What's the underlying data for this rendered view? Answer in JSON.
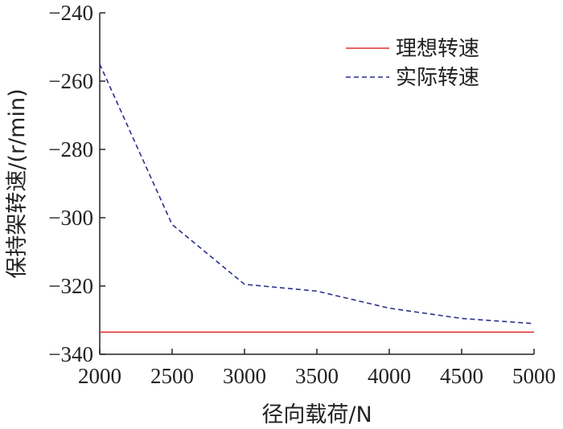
{
  "chart_data": {
    "type": "line",
    "xlabel": "径向载荷/N",
    "ylabel": "保持架转速/(r/min)",
    "xlim": [
      2000,
      5000
    ],
    "ylim": [
      -340,
      -240
    ],
    "x_ticks": [
      2000,
      2500,
      3000,
      3500,
      4000,
      4500,
      5000
    ],
    "y_ticks": [
      -240,
      -260,
      -280,
      -300,
      -320,
      -340
    ],
    "grid": false,
    "legend_position": "top-right",
    "series": [
      {
        "name": "理想转速",
        "color": "#e03030",
        "style": "solid",
        "x": [
          2000,
          5000
        ],
        "y": [
          -333.5,
          -333.5
        ]
      },
      {
        "name": "实际转速",
        "color": "#2b2f8c",
        "style": "dashed",
        "x": [
          2000,
          2500,
          3000,
          3500,
          4000,
          4500,
          5000
        ],
        "y": [
          -255,
          -302,
          -319.5,
          -321.5,
          -326.5,
          -329.5,
          -331
        ]
      }
    ]
  }
}
